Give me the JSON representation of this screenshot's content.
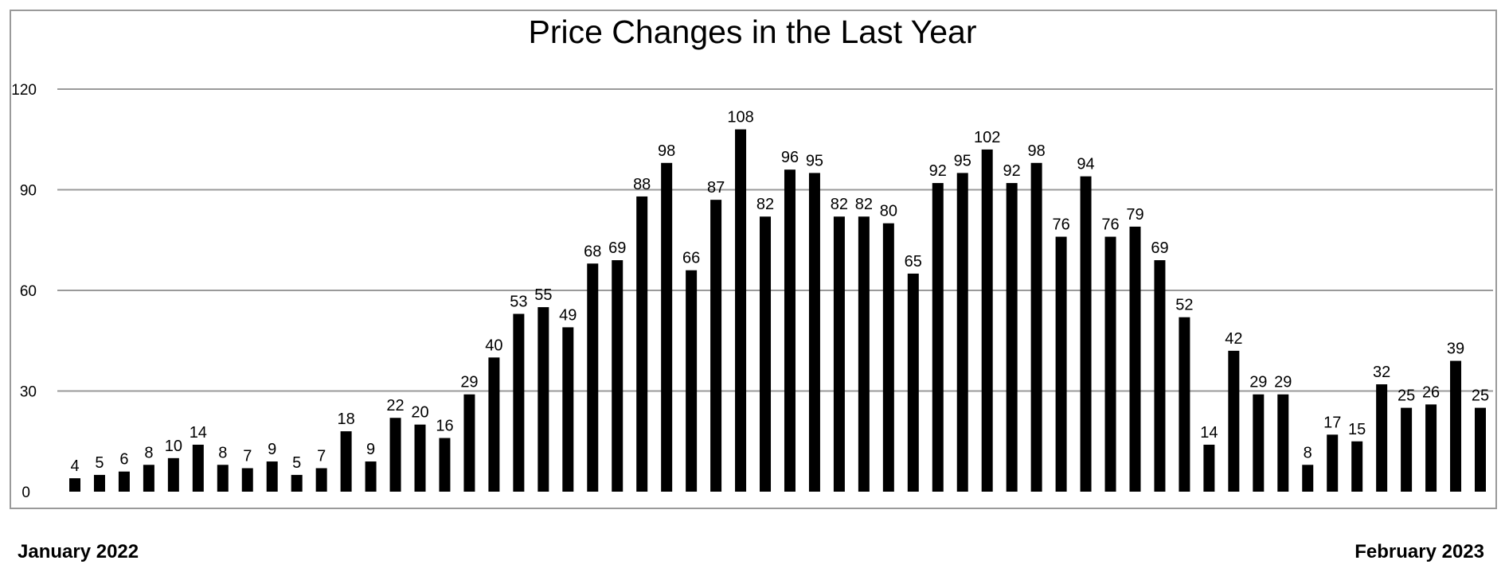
{
  "chart_data": {
    "type": "bar",
    "title": "Price Changes in the Last Year",
    "xlabel": "",
    "ylabel": "",
    "ylim": [
      0,
      120
    ],
    "yticks": [
      0,
      30,
      60,
      90,
      120
    ],
    "grid": true,
    "legend": "none",
    "start_label": "January 2022",
    "end_label": "February 2023",
    "values": [
      4,
      5,
      6,
      8,
      10,
      14,
      8,
      7,
      9,
      5,
      7,
      18,
      9,
      22,
      20,
      16,
      29,
      40,
      53,
      55,
      49,
      68,
      69,
      88,
      98,
      66,
      87,
      108,
      82,
      96,
      95,
      82,
      82,
      80,
      65,
      92,
      95,
      102,
      92,
      98,
      76,
      94,
      76,
      79,
      69,
      52,
      14,
      42,
      29,
      29,
      8,
      17,
      15,
      32,
      25,
      26,
      39,
      25
    ],
    "bar_color": "#000000",
    "grid_color": "#9a9a9a"
  }
}
